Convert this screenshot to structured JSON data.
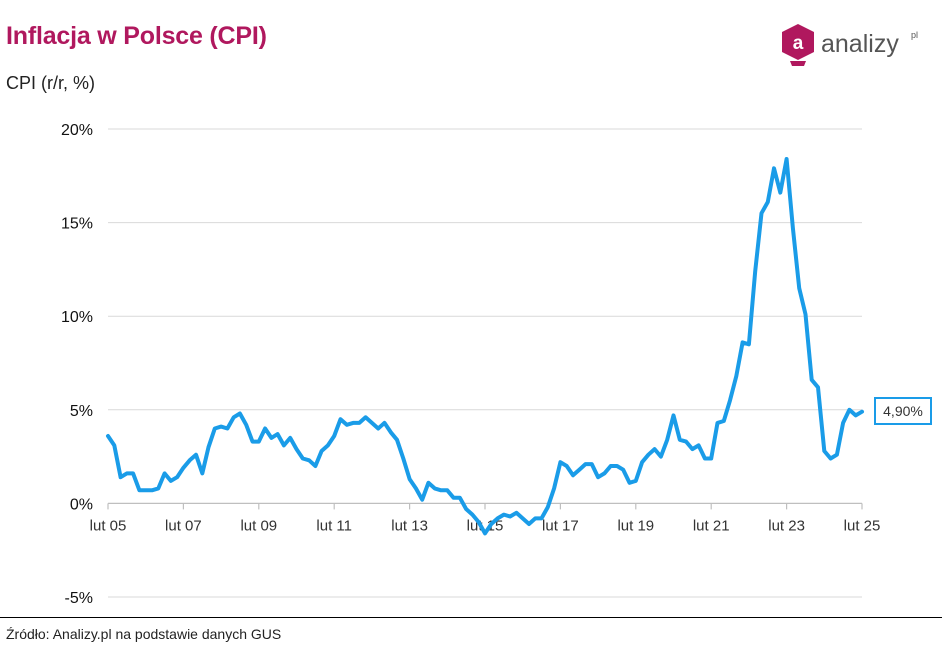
{
  "header": {
    "title": "Inflacja w Polsce (CPI)",
    "subtitle": "CPI (r/r, %)"
  },
  "logo": {
    "text": "analizy",
    "sup": "pl",
    "letter": "a"
  },
  "source": "Źródło: Analizy.pl na podstawie danych GUS",
  "callout": {
    "label": "4,90%"
  },
  "chart_data": {
    "type": "line",
    "ylim": [
      -5,
      20
    ],
    "yticks": [
      20,
      15,
      10,
      5,
      0,
      -5
    ],
    "ytick_labels": [
      "20%",
      "15%",
      "10%",
      "5%",
      "0%",
      "-5%"
    ],
    "xlim": [
      "2005-02",
      "2025-02"
    ],
    "xticks": [
      "2005-02",
      "2007-02",
      "2009-02",
      "2011-02",
      "2013-02",
      "2015-02",
      "2017-02",
      "2019-02",
      "2021-02",
      "2023-02",
      "2025-02"
    ],
    "xtick_labels": [
      "lut 05",
      "lut 07",
      "lut 09",
      "lut 11",
      "lut 13",
      "lut 15",
      "lut 17",
      "lut 19",
      "lut 21",
      "lut 23",
      "lut 25"
    ],
    "grid": true,
    "line_color": "#1a9ce8",
    "series": [
      {
        "points": [
          [
            "2005-02",
            3.6
          ],
          [
            "2005-04",
            3.1
          ],
          [
            "2005-06",
            1.4
          ],
          [
            "2005-08",
            1.6
          ],
          [
            "2005-10",
            1.6
          ],
          [
            "2005-12",
            0.7
          ],
          [
            "2006-02",
            0.7
          ],
          [
            "2006-04",
            0.7
          ],
          [
            "2006-06",
            0.8
          ],
          [
            "2006-08",
            1.6
          ],
          [
            "2006-10",
            1.2
          ],
          [
            "2006-12",
            1.4
          ],
          [
            "2007-02",
            1.9
          ],
          [
            "2007-04",
            2.3
          ],
          [
            "2007-06",
            2.6
          ],
          [
            "2007-08",
            1.6
          ],
          [
            "2007-10",
            3.0
          ],
          [
            "2007-12",
            4.0
          ],
          [
            "2008-02",
            4.1
          ],
          [
            "2008-04",
            4.0
          ],
          [
            "2008-06",
            4.6
          ],
          [
            "2008-08",
            4.8
          ],
          [
            "2008-10",
            4.2
          ],
          [
            "2008-12",
            3.3
          ],
          [
            "2009-02",
            3.3
          ],
          [
            "2009-04",
            4.0
          ],
          [
            "2009-06",
            3.5
          ],
          [
            "2009-08",
            3.7
          ],
          [
            "2009-10",
            3.1
          ],
          [
            "2009-12",
            3.5
          ],
          [
            "2010-02",
            2.9
          ],
          [
            "2010-04",
            2.4
          ],
          [
            "2010-06",
            2.3
          ],
          [
            "2010-08",
            2.0
          ],
          [
            "2010-10",
            2.8
          ],
          [
            "2010-12",
            3.1
          ],
          [
            "2011-02",
            3.6
          ],
          [
            "2011-04",
            4.5
          ],
          [
            "2011-06",
            4.2
          ],
          [
            "2011-08",
            4.3
          ],
          [
            "2011-10",
            4.3
          ],
          [
            "2011-12",
            4.6
          ],
          [
            "2012-02",
            4.3
          ],
          [
            "2012-04",
            4.0
          ],
          [
            "2012-06",
            4.3
          ],
          [
            "2012-08",
            3.8
          ],
          [
            "2012-10",
            3.4
          ],
          [
            "2012-12",
            2.4
          ],
          [
            "2013-02",
            1.3
          ],
          [
            "2013-04",
            0.8
          ],
          [
            "2013-06",
            0.2
          ],
          [
            "2013-08",
            1.1
          ],
          [
            "2013-10",
            0.8
          ],
          [
            "2013-12",
            0.7
          ],
          [
            "2014-02",
            0.7
          ],
          [
            "2014-04",
            0.3
          ],
          [
            "2014-06",
            0.3
          ],
          [
            "2014-08",
            -0.3
          ],
          [
            "2014-10",
            -0.6
          ],
          [
            "2014-12",
            -1.0
          ],
          [
            "2015-02",
            -1.6
          ],
          [
            "2015-04",
            -1.1
          ],
          [
            "2015-06",
            -0.8
          ],
          [
            "2015-08",
            -0.6
          ],
          [
            "2015-10",
            -0.7
          ],
          [
            "2015-12",
            -0.5
          ],
          [
            "2016-02",
            -0.8
          ],
          [
            "2016-04",
            -1.1
          ],
          [
            "2016-06",
            -0.8
          ],
          [
            "2016-08",
            -0.8
          ],
          [
            "2016-10",
            -0.2
          ],
          [
            "2016-12",
            0.8
          ],
          [
            "2017-02",
            2.2
          ],
          [
            "2017-04",
            2.0
          ],
          [
            "2017-06",
            1.5
          ],
          [
            "2017-08",
            1.8
          ],
          [
            "2017-10",
            2.1
          ],
          [
            "2017-12",
            2.1
          ],
          [
            "2018-02",
            1.4
          ],
          [
            "2018-04",
            1.6
          ],
          [
            "2018-06",
            2.0
          ],
          [
            "2018-08",
            2.0
          ],
          [
            "2018-10",
            1.8
          ],
          [
            "2018-12",
            1.1
          ],
          [
            "2019-02",
            1.2
          ],
          [
            "2019-04",
            2.2
          ],
          [
            "2019-06",
            2.6
          ],
          [
            "2019-08",
            2.9
          ],
          [
            "2019-10",
            2.5
          ],
          [
            "2019-12",
            3.4
          ],
          [
            "2020-02",
            4.7
          ],
          [
            "2020-04",
            3.4
          ],
          [
            "2020-06",
            3.3
          ],
          [
            "2020-08",
            2.9
          ],
          [
            "2020-10",
            3.1
          ],
          [
            "2020-12",
            2.4
          ],
          [
            "2021-02",
            2.4
          ],
          [
            "2021-04",
            4.3
          ],
          [
            "2021-06",
            4.4
          ],
          [
            "2021-08",
            5.5
          ],
          [
            "2021-10",
            6.8
          ],
          [
            "2021-12",
            8.6
          ],
          [
            "2022-02",
            8.5
          ],
          [
            "2022-04",
            12.4
          ],
          [
            "2022-06",
            15.5
          ],
          [
            "2022-08",
            16.1
          ],
          [
            "2022-10",
            17.9
          ],
          [
            "2022-12",
            16.6
          ],
          [
            "2023-02",
            18.4
          ],
          [
            "2023-04",
            14.7
          ],
          [
            "2023-06",
            11.5
          ],
          [
            "2023-08",
            10.1
          ],
          [
            "2023-10",
            6.6
          ],
          [
            "2023-12",
            6.2
          ],
          [
            "2024-02",
            2.8
          ],
          [
            "2024-04",
            2.4
          ],
          [
            "2024-06",
            2.6
          ],
          [
            "2024-08",
            4.3
          ],
          [
            "2024-10",
            5.0
          ],
          [
            "2024-12",
            4.7
          ],
          [
            "2025-02",
            4.9
          ]
        ]
      }
    ]
  }
}
